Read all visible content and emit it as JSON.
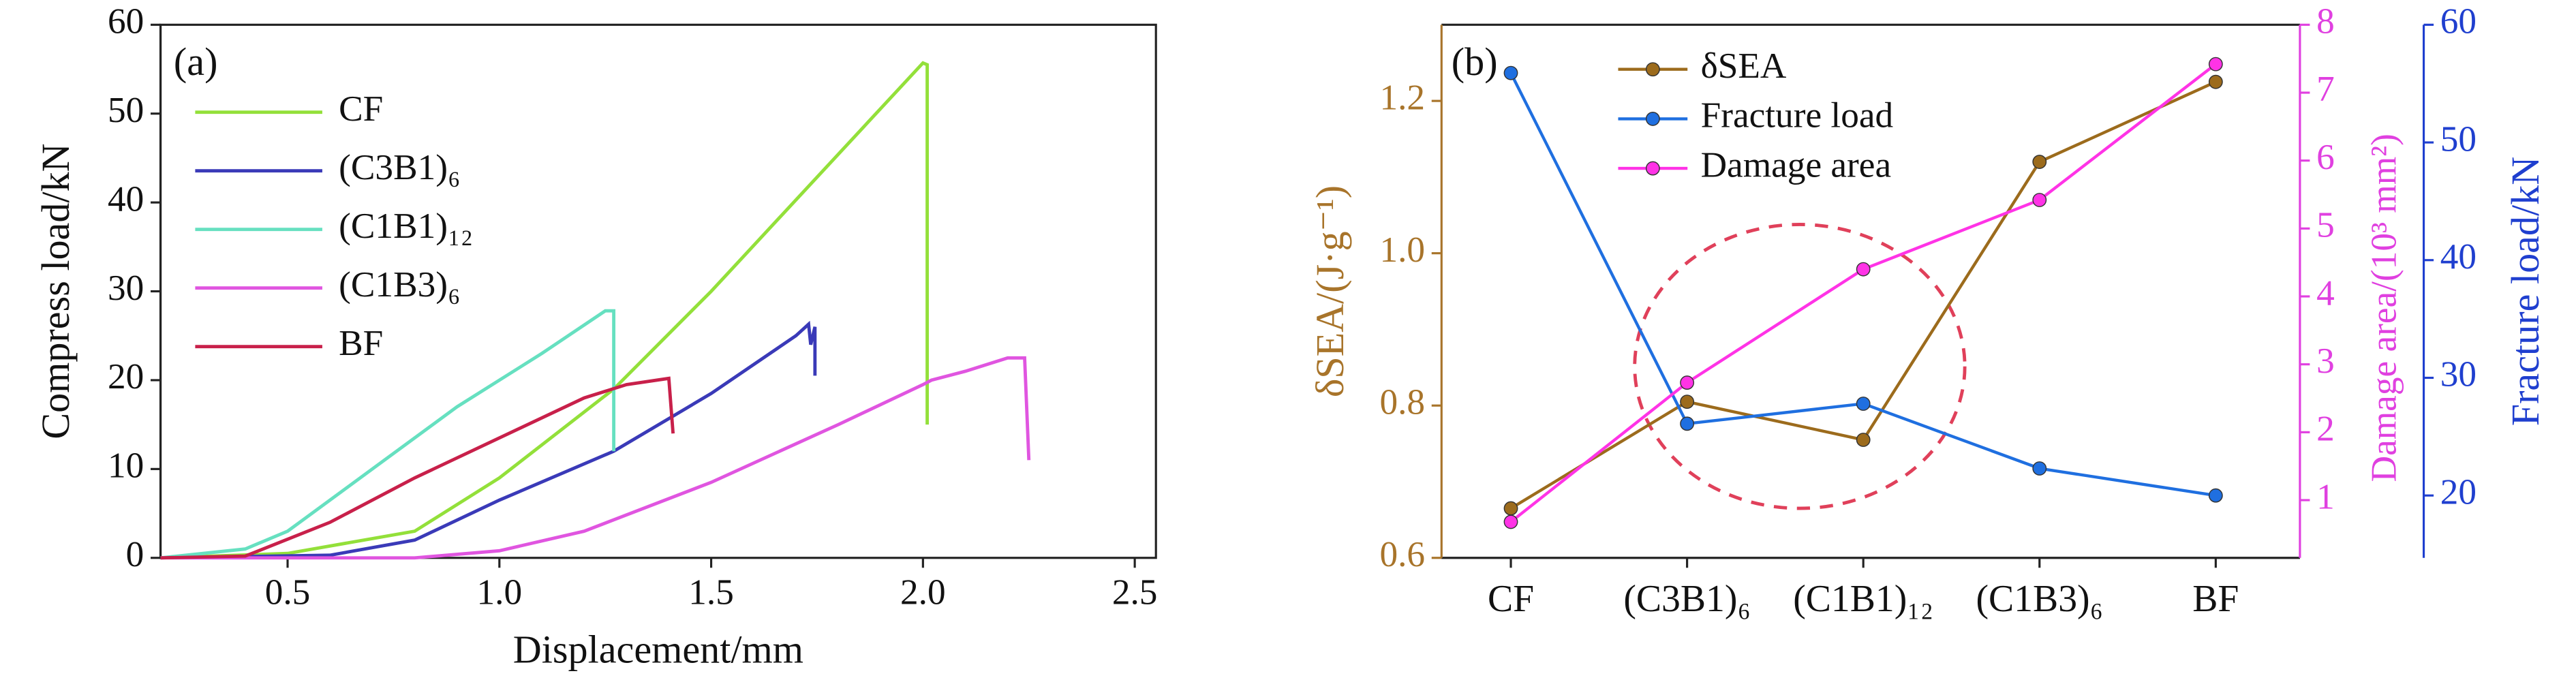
{
  "chart_data": [
    {
      "type": "line",
      "label": "(a)",
      "xlabel": "Displacement/mm",
      "ylabel": "Compress load/kN",
      "xlim": [
        0.2,
        2.55
      ],
      "xticks": [
        0.5,
        {
          "value": 1,
          "label": "1.0"
        },
        1.5,
        {
          "value": 2,
          "label": "2.0"
        },
        2.5
      ],
      "ylim": [
        0,
        60
      ],
      "yticks": [
        0,
        10,
        20,
        30,
        40,
        50,
        60
      ],
      "legend": "upper left",
      "series": [
        {
          "name": "CF",
          "color": "#93e03a",
          "x": [
            0.2,
            0.5,
            0.8,
            1.0,
            1.27,
            1.5,
            2.0,
            2.01,
            2.01
          ],
          "values": [
            0,
            0.5,
            3,
            9,
            19,
            30,
            55.7,
            55.5,
            15
          ]
        },
        {
          "name": "(C3B1)₆",
          "color": "#3a3ab8",
          "x": [
            0.2,
            0.6,
            0.8,
            1.0,
            1.27,
            1.5,
            1.7,
            1.73,
            1.735,
            1.745,
            1.745
          ],
          "values": [
            0,
            0.3,
            2,
            6.5,
            12,
            18.5,
            25,
            26.3,
            24,
            26,
            20.5
          ]
        },
        {
          "name": "(C1B1)₁₂",
          "color": "#66e0c0",
          "x": [
            0.2,
            0.4,
            0.5,
            0.7,
            0.9,
            1.1,
            1.25,
            1.27,
            1.27
          ],
          "values": [
            0,
            1,
            3,
            10,
            17,
            23,
            27.8,
            27.8,
            12
          ]
        },
        {
          "name": "(C1B3)₆",
          "color": "#e055e0",
          "x": [
            0.2,
            0.8,
            1.0,
            1.2,
            1.5,
            1.8,
            2.0,
            2.02,
            2.1,
            2.2,
            2.24,
            2.25
          ],
          "values": [
            0,
            0,
            0.8,
            3,
            8.5,
            15,
            19.5,
            20,
            21,
            22.5,
            22.5,
            11
          ]
        },
        {
          "name": "BF",
          "color": "#c8204a",
          "x": [
            0.2,
            0.4,
            0.6,
            0.8,
            1.0,
            1.2,
            1.3,
            1.4,
            1.41
          ],
          "values": [
            0,
            0.2,
            4,
            9,
            13.5,
            18,
            19.5,
            20.2,
            14
          ]
        }
      ]
    },
    {
      "type": "multi_axis_line",
      "label": "(b)",
      "categories": [
        "CF",
        "(C3B1)₆",
        "(C1B1)₁₂",
        "(C1B3)₆",
        "BF"
      ],
      "ylabel": "δSEA/(J·g⁻¹)",
      "ylim": [
        0.6,
        1.3
      ],
      "yticks": [
        0.6,
        0.8,
        {
          "value": 1,
          "label": "1.0"
        },
        1.2
      ],
      "ycolor": "#a8742a",
      "y2label": "Damage area/(10³ mm²)",
      "y2lim": [
        0.15,
        8
      ],
      "y2ticks": [
        1,
        2,
        3,
        4,
        5,
        6,
        7,
        8
      ],
      "y2color": "#e040e0",
      "y3label": "Fracture load/kN",
      "y3lim": [
        14.7,
        60
      ],
      "y3ticks": [
        20,
        30,
        40,
        50,
        60
      ],
      "y3color": "#1f3fcf",
      "legend": "upper center",
      "series": [
        {
          "name": "δSEA",
          "color": "#9c6b1c",
          "axis": "y",
          "values": [
            0.665,
            0.805,
            0.755,
            1.12,
            1.225
          ]
        },
        {
          "name": "Fracture load",
          "color": "#1f6fe0",
          "axis": "y3",
          "values": [
            55.9,
            26.1,
            27.8,
            22.3,
            20.0
          ]
        },
        {
          "name": "Damage area",
          "color": "#ff33e6",
          "axis": "y2",
          "values": [
            0.68,
            2.73,
            4.4,
            5.42,
            7.42
          ]
        }
      ]
    }
  ]
}
